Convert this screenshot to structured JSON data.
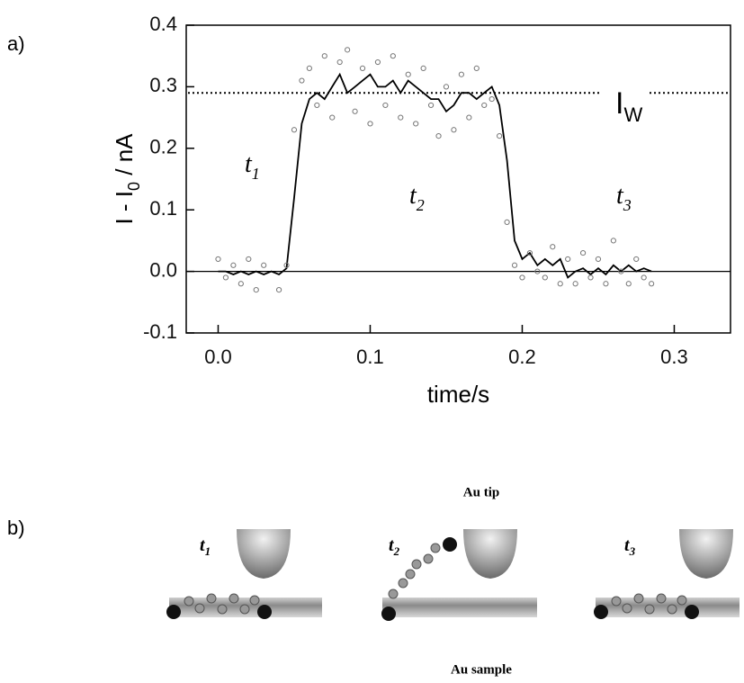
{
  "panel_labels": [
    "a)",
    "b)"
  ],
  "chart_data": {
    "type": "line",
    "xlabel": "time/s",
    "ylabel": [
      "I - I",
      "0",
      " / nA"
    ],
    "xlim": [
      -0.021,
      0.337
    ],
    "ylim": [
      -0.1,
      0.4
    ],
    "xticks": [
      {
        "value": 0,
        "label": "0.0"
      },
      0.1,
      0.2,
      0.3
    ],
    "yticks": [
      -0.1,
      {
        "value": 0,
        "label": "0.0"
      },
      0.1,
      0.2,
      0.3,
      0.4
    ],
    "reference_lines": [
      {
        "value": 0,
        "style": "solid"
      },
      {
        "value": 0.29,
        "style": "dotted",
        "label": "I",
        "label_sub": "W"
      }
    ],
    "annotations": [
      {
        "text": "t",
        "sub": "1"
      },
      {
        "text": "t",
        "sub": "2"
      },
      {
        "text": "t",
        "sub": "3"
      }
    ],
    "series": [
      {
        "style": "line",
        "color": "#000000",
        "x": [
          0,
          0.005,
          0.01,
          0.015,
          0.02,
          0.025,
          0.03,
          0.035,
          0.04,
          0.045,
          0.05,
          0.055,
          0.06,
          0.065,
          0.07,
          0.075,
          0.08,
          0.085,
          0.09,
          0.095,
          0.1,
          0.105,
          0.11,
          0.115,
          0.12,
          0.125,
          0.13,
          0.135,
          0.14,
          0.145,
          0.15,
          0.155,
          0.16,
          0.165,
          0.17,
          0.175,
          0.18,
          0.185,
          0.19,
          0.195,
          0.2,
          0.205,
          0.21,
          0.215,
          0.22,
          0.225,
          0.23,
          0.235,
          0.24,
          0.245,
          0.25,
          0.255,
          0.26,
          0.265,
          0.27,
          0.275,
          0.28,
          0.285
        ],
        "values": [
          0,
          0,
          -0.005,
          0,
          -0.005,
          0,
          -0.005,
          0,
          -0.005,
          0.005,
          0.12,
          0.24,
          0.28,
          0.29,
          0.28,
          0.3,
          0.32,
          0.29,
          0.3,
          0.31,
          0.32,
          0.3,
          0.3,
          0.31,
          0.29,
          0.31,
          0.3,
          0.29,
          0.28,
          0.28,
          0.26,
          0.27,
          0.29,
          0.29,
          0.28,
          0.29,
          0.3,
          0.27,
          0.18,
          0.05,
          0.02,
          0.03,
          0.01,
          0.02,
          0.01,
          0.02,
          -0.01,
          0,
          0.005,
          -0.005,
          0.005,
          -0.005,
          0.01,
          0,
          0.01,
          0,
          0.005,
          0
        ]
      },
      {
        "style": "scatter",
        "color": "#777777",
        "x": [
          0,
          0.005,
          0.01,
          0.015,
          0.02,
          0.025,
          0.03,
          0.04,
          0.045,
          0.05,
          0.055,
          0.06,
          0.065,
          0.07,
          0.075,
          0.08,
          0.085,
          0.09,
          0.095,
          0.1,
          0.105,
          0.11,
          0.115,
          0.12,
          0.125,
          0.13,
          0.135,
          0.14,
          0.145,
          0.15,
          0.155,
          0.16,
          0.165,
          0.17,
          0.175,
          0.18,
          0.185,
          0.19,
          0.195,
          0.2,
          0.205,
          0.21,
          0.215,
          0.22,
          0.225,
          0.23,
          0.235,
          0.24,
          0.245,
          0.25,
          0.255,
          0.26,
          0.265,
          0.27,
          0.275,
          0.28,
          0.285
        ],
        "values": [
          0.02,
          -0.01,
          0.01,
          -0.02,
          0.02,
          -0.03,
          0.01,
          -0.03,
          0.01,
          0.23,
          0.31,
          0.33,
          0.27,
          0.35,
          0.25,
          0.34,
          0.36,
          0.26,
          0.33,
          0.24,
          0.34,
          0.27,
          0.35,
          0.25,
          0.32,
          0.24,
          0.33,
          0.27,
          0.22,
          0.3,
          0.23,
          0.32,
          0.25,
          0.33,
          0.27,
          0.28,
          0.22,
          0.08,
          0.01,
          -0.01,
          0.03,
          0,
          -0.01,
          0.04,
          -0.02,
          0.02,
          -0.02,
          0.03,
          -0.01,
          0.02,
          -0.02,
          0.05,
          0,
          -0.02,
          0.02,
          -0.01,
          -0.02
        ]
      }
    ]
  },
  "diagram": {
    "tip_label": "Au tip",
    "sample_label": "Au sample",
    "states": [
      {
        "text": "t",
        "sub": "1"
      },
      {
        "text": "t",
        "sub": "2"
      },
      {
        "text": "t",
        "sub": "3"
      }
    ]
  }
}
